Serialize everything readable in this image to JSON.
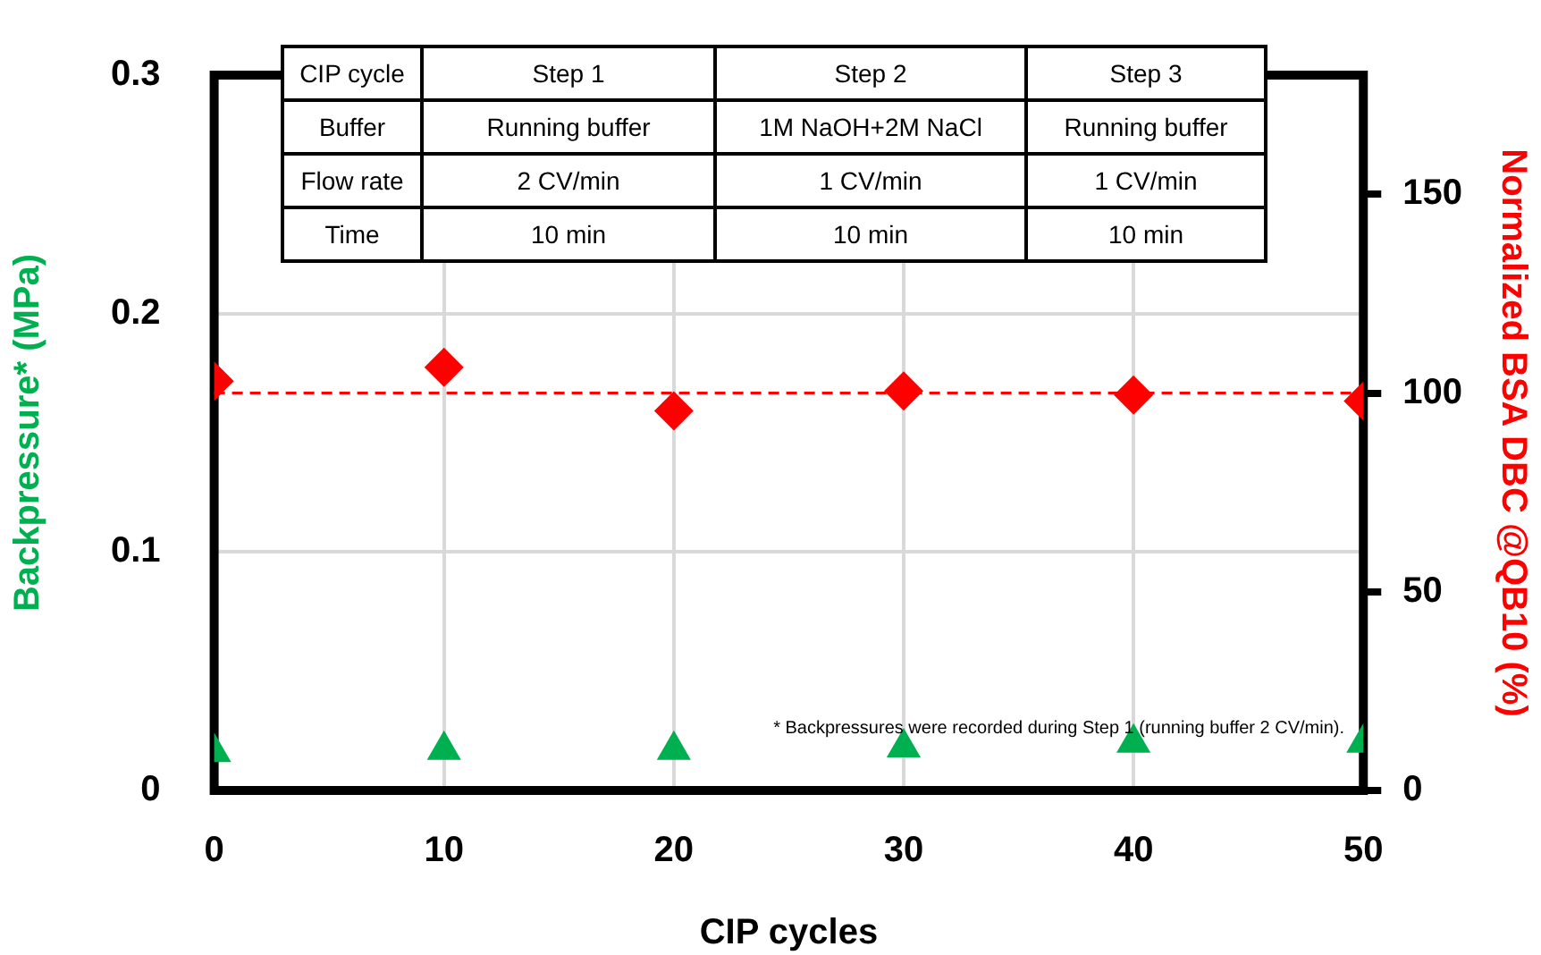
{
  "chart_data": {
    "type": "scatter",
    "xlabel": "CIP cycles",
    "ylabel": "Backpressure* (MPa)",
    "y2label": "Normalized BSA DBC @QB10 (%)",
    "x": [
      0,
      10,
      20,
      30,
      40,
      50
    ],
    "series": [
      {
        "color": "#00b050",
        "marker": "triangle",
        "values": [
          0.016,
          0.017,
          0.017,
          0.018,
          0.02,
          0.02
        ]
      },
      {
        "color": "#ff0000",
        "marker": "diamond",
        "axis": "y2",
        "values": [
          103,
          106.5,
          95.5,
          100.5,
          99.5,
          98
        ]
      }
    ],
    "xlim": [
      0,
      50
    ],
    "xticks": [
      0,
      10,
      20,
      30,
      40,
      50
    ],
    "ylim": [
      0,
      0.3
    ],
    "yticks": [
      0,
      0.1,
      0.2,
      0.3
    ],
    "y2lim": [
      0,
      180
    ],
    "y2ticks": [
      0,
      50,
      100,
      150
    ],
    "grid": true,
    "legend": false,
    "ref_lines": [
      {
        "axis": "y2",
        "value": 100,
        "color": "#ff0000",
        "line_style": "dashed"
      }
    ],
    "annotations": [
      "CIP cycle",
      "Step 1",
      "Step 2",
      "Step 3",
      "Buffer",
      "Running buffer",
      "1M NaOH+2M NaCl",
      "Running buffer",
      "Flow rate",
      "2 CV/min",
      "1 CV/min",
      "1 CV/min",
      "Time",
      "10 min",
      "10 min",
      "10 min",
      "* Backpressures were recorded during Step 1 (running buffer 2 CV/min)."
    ]
  }
}
